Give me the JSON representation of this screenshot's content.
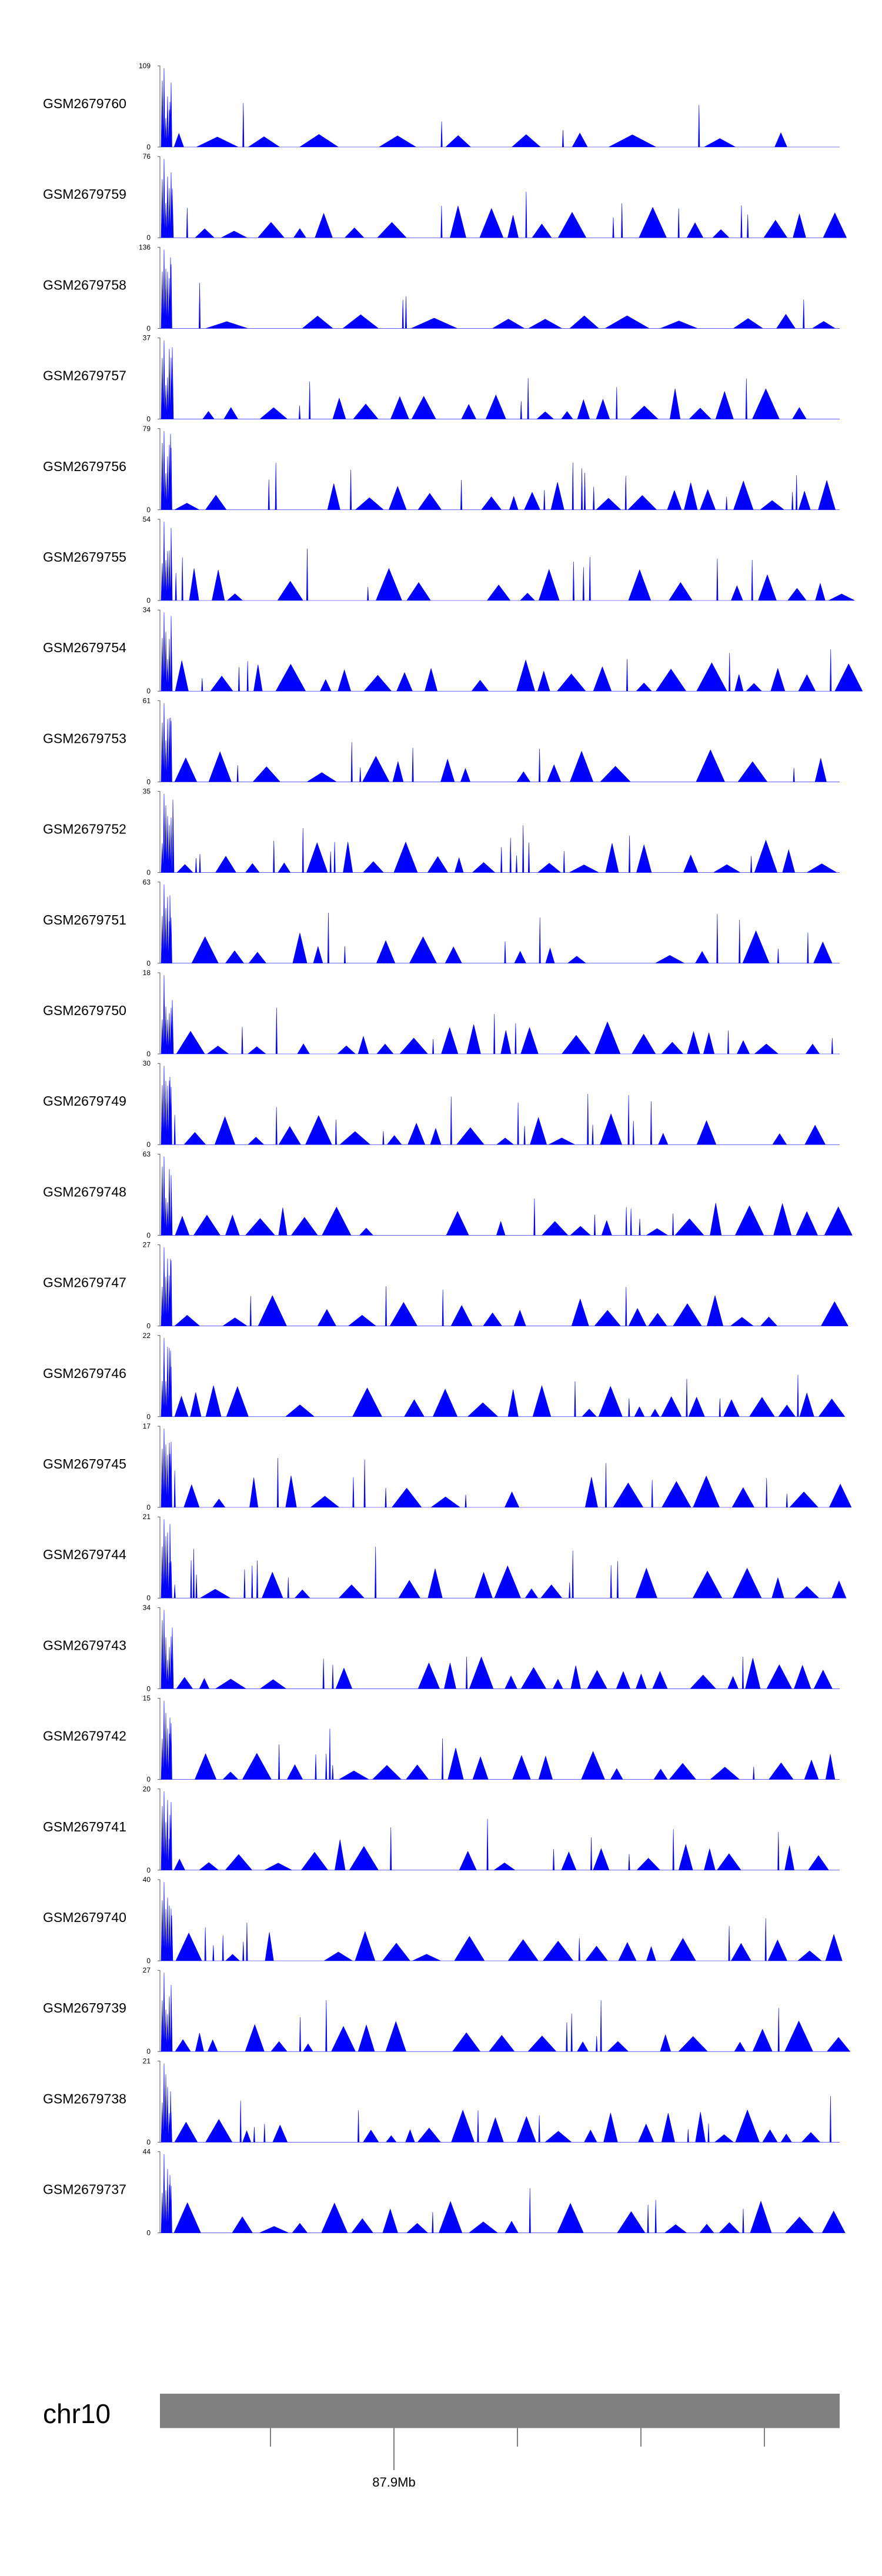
{
  "chart_data": {
    "type": "area",
    "fill_color": "#0000ff",
    "ideogram_color": "#808080",
    "tracks": [
      {
        "name": "GSM2679760",
        "ymax": "109",
        "ymin": "0"
      },
      {
        "name": "GSM2679759",
        "ymax": "76",
        "ymin": "0"
      },
      {
        "name": "GSM2679758",
        "ymax": "136",
        "ymin": "0"
      },
      {
        "name": "GSM2679757",
        "ymax": "37",
        "ymin": "0"
      },
      {
        "name": "GSM2679756",
        "ymax": "79",
        "ymin": "0"
      },
      {
        "name": "GSM2679755",
        "ymax": "54",
        "ymin": "0"
      },
      {
        "name": "GSM2679754",
        "ymax": "34",
        "ymin": "0"
      },
      {
        "name": "GSM2679753",
        "ymax": "61",
        "ymin": "0"
      },
      {
        "name": "GSM2679752",
        "ymax": "35",
        "ymin": "0"
      },
      {
        "name": "GSM2679751",
        "ymax": "63",
        "ymin": "0"
      },
      {
        "name": "GSM2679750",
        "ymax": "18",
        "ymin": "0"
      },
      {
        "name": "GSM2679749",
        "ymax": "30",
        "ymin": "0"
      },
      {
        "name": "GSM2679748",
        "ymax": "63",
        "ymin": "0"
      },
      {
        "name": "GSM2679747",
        "ymax": "27",
        "ymin": "0"
      },
      {
        "name": "GSM2679746",
        "ymax": "22",
        "ymin": "0"
      },
      {
        "name": "GSM2679745",
        "ymax": "17",
        "ymin": "0"
      },
      {
        "name": "GSM2679744",
        "ymax": "21",
        "ymin": "0"
      },
      {
        "name": "GSM2679743",
        "ymax": "34",
        "ymin": "0"
      },
      {
        "name": "GSM2679742",
        "ymax": "15",
        "ymin": "0"
      },
      {
        "name": "GSM2679741",
        "ymax": "20",
        "ymin": "0"
      },
      {
        "name": "GSM2679740",
        "ymax": "40",
        "ymin": "0"
      },
      {
        "name": "GSM2679739",
        "ymax": "27",
        "ymin": "0"
      },
      {
        "name": "GSM2679738",
        "ymax": "21",
        "ymin": "0"
      },
      {
        "name": "GSM2679737",
        "ymax": "44",
        "ymin": "0"
      }
    ],
    "chromosome": "chr10",
    "position_labels": [
      "",
      "87.9Mb",
      "",
      "",
      ""
    ]
  }
}
